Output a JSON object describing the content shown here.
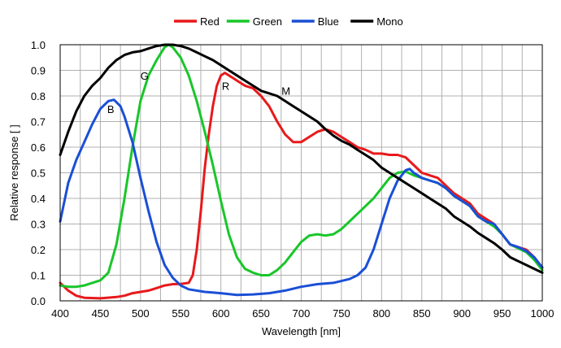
{
  "chart_data": {
    "type": "line",
    "title": "",
    "xlabel": "Wavelength [nm]",
    "ylabel": "Relative response [ ]",
    "xlim": [
      400,
      1000
    ],
    "ylim": [
      0.0,
      1.0
    ],
    "x_ticks": [
      "400",
      "450",
      "500",
      "550",
      "600",
      "650",
      "700",
      "750",
      "800",
      "850",
      "900",
      "950",
      "1000"
    ],
    "y_ticks": [
      "0.0",
      "0.1",
      "0.2",
      "0.3",
      "0.4",
      "0.5",
      "0.6",
      "0.7",
      "0.8",
      "0.9",
      "1.0"
    ],
    "grid": true,
    "legend_position": "top-center",
    "annotations": [
      {
        "text": "B",
        "x": 463,
        "y": 0.75
      },
      {
        "text": "G",
        "x": 505,
        "y": 0.88
      },
      {
        "text": "R",
        "x": 606,
        "y": 0.84
      },
      {
        "text": "M",
        "x": 681,
        "y": 0.82
      }
    ],
    "series": [
      {
        "name": "Red",
        "color": "#e8191b",
        "points": [
          [
            400,
            0.07
          ],
          [
            410,
            0.04
          ],
          [
            420,
            0.02
          ],
          [
            430,
            0.012
          ],
          [
            450,
            0.01
          ],
          [
            470,
            0.015
          ],
          [
            480,
            0.02
          ],
          [
            490,
            0.03
          ],
          [
            500,
            0.035
          ],
          [
            510,
            0.04
          ],
          [
            520,
            0.05
          ],
          [
            530,
            0.06
          ],
          [
            540,
            0.065
          ],
          [
            550,
            0.066
          ],
          [
            560,
            0.07
          ],
          [
            565,
            0.1
          ],
          [
            570,
            0.2
          ],
          [
            575,
            0.35
          ],
          [
            580,
            0.52
          ],
          [
            585,
            0.65
          ],
          [
            590,
            0.76
          ],
          [
            595,
            0.84
          ],
          [
            600,
            0.88
          ],
          [
            605,
            0.89
          ],
          [
            610,
            0.88
          ],
          [
            615,
            0.87
          ],
          [
            620,
            0.86
          ],
          [
            630,
            0.84
          ],
          [
            640,
            0.83
          ],
          [
            650,
            0.8
          ],
          [
            660,
            0.76
          ],
          [
            670,
            0.7
          ],
          [
            680,
            0.65
          ],
          [
            690,
            0.62
          ],
          [
            700,
            0.62
          ],
          [
            710,
            0.64
          ],
          [
            720,
            0.66
          ],
          [
            730,
            0.67
          ],
          [
            740,
            0.66
          ],
          [
            750,
            0.64
          ],
          [
            760,
            0.62
          ],
          [
            770,
            0.6
          ],
          [
            780,
            0.59
          ],
          [
            790,
            0.575
          ],
          [
            800,
            0.575
          ],
          [
            810,
            0.57
          ],
          [
            820,
            0.57
          ],
          [
            830,
            0.56
          ],
          [
            840,
            0.53
          ],
          [
            850,
            0.5
          ],
          [
            860,
            0.49
          ],
          [
            870,
            0.48
          ],
          [
            880,
            0.45
          ],
          [
            890,
            0.42
          ],
          [
            900,
            0.4
          ],
          [
            910,
            0.38
          ],
          [
            920,
            0.34
          ],
          [
            930,
            0.32
          ],
          [
            940,
            0.3
          ],
          [
            950,
            0.26
          ],
          [
            960,
            0.22
          ],
          [
            970,
            0.21
          ],
          [
            980,
            0.2
          ],
          [
            990,
            0.17
          ],
          [
            1000,
            0.13
          ]
        ]
      },
      {
        "name": "Green",
        "color": "#19c62a",
        "points": [
          [
            400,
            0.06
          ],
          [
            410,
            0.055
          ],
          [
            420,
            0.055
          ],
          [
            430,
            0.06
          ],
          [
            440,
            0.07
          ],
          [
            450,
            0.08
          ],
          [
            460,
            0.11
          ],
          [
            470,
            0.22
          ],
          [
            480,
            0.4
          ],
          [
            490,
            0.6
          ],
          [
            500,
            0.78
          ],
          [
            510,
            0.88
          ],
          [
            520,
            0.94
          ],
          [
            530,
            0.99
          ],
          [
            535,
            1.0
          ],
          [
            540,
            0.99
          ],
          [
            550,
            0.95
          ],
          [
            560,
            0.88
          ],
          [
            570,
            0.78
          ],
          [
            580,
            0.66
          ],
          [
            590,
            0.53
          ],
          [
            600,
            0.39
          ],
          [
            610,
            0.26
          ],
          [
            620,
            0.17
          ],
          [
            630,
            0.125
          ],
          [
            640,
            0.11
          ],
          [
            650,
            0.1
          ],
          [
            660,
            0.1
          ],
          [
            670,
            0.12
          ],
          [
            680,
            0.15
          ],
          [
            690,
            0.19
          ],
          [
            700,
            0.23
          ],
          [
            710,
            0.255
          ],
          [
            720,
            0.26
          ],
          [
            730,
            0.255
          ],
          [
            740,
            0.26
          ],
          [
            750,
            0.28
          ],
          [
            760,
            0.31
          ],
          [
            770,
            0.34
          ],
          [
            780,
            0.37
          ],
          [
            790,
            0.4
          ],
          [
            800,
            0.44
          ],
          [
            810,
            0.48
          ],
          [
            820,
            0.5
          ],
          [
            830,
            0.505
          ],
          [
            840,
            0.49
          ],
          [
            850,
            0.48
          ],
          [
            860,
            0.47
          ],
          [
            870,
            0.46
          ],
          [
            880,
            0.44
          ],
          [
            890,
            0.41
          ],
          [
            900,
            0.39
          ],
          [
            910,
            0.37
          ],
          [
            920,
            0.33
          ],
          [
            930,
            0.31
          ],
          [
            940,
            0.29
          ],
          [
            950,
            0.26
          ],
          [
            960,
            0.22
          ],
          [
            970,
            0.205
          ],
          [
            980,
            0.19
          ],
          [
            990,
            0.16
          ],
          [
            1000,
            0.12
          ]
        ]
      },
      {
        "name": "Blue",
        "color": "#1a4fd6",
        "points": [
          [
            400,
            0.31
          ],
          [
            410,
            0.46
          ],
          [
            420,
            0.55
          ],
          [
            430,
            0.62
          ],
          [
            440,
            0.69
          ],
          [
            450,
            0.75
          ],
          [
            460,
            0.78
          ],
          [
            467,
            0.785
          ],
          [
            475,
            0.76
          ],
          [
            480,
            0.72
          ],
          [
            490,
            0.62
          ],
          [
            500,
            0.48
          ],
          [
            510,
            0.35
          ],
          [
            520,
            0.23
          ],
          [
            530,
            0.14
          ],
          [
            540,
            0.09
          ],
          [
            550,
            0.06
          ],
          [
            560,
            0.045
          ],
          [
            580,
            0.035
          ],
          [
            600,
            0.03
          ],
          [
            620,
            0.023
          ],
          [
            640,
            0.025
          ],
          [
            660,
            0.03
          ],
          [
            680,
            0.04
          ],
          [
            700,
            0.055
          ],
          [
            720,
            0.065
          ],
          [
            740,
            0.07
          ],
          [
            760,
            0.085
          ],
          [
            770,
            0.1
          ],
          [
            780,
            0.13
          ],
          [
            790,
            0.2
          ],
          [
            800,
            0.3
          ],
          [
            810,
            0.4
          ],
          [
            820,
            0.47
          ],
          [
            830,
            0.51
          ],
          [
            835,
            0.515
          ],
          [
            840,
            0.5
          ],
          [
            850,
            0.48
          ],
          [
            860,
            0.47
          ],
          [
            870,
            0.46
          ],
          [
            880,
            0.44
          ],
          [
            890,
            0.41
          ],
          [
            900,
            0.39
          ],
          [
            910,
            0.37
          ],
          [
            920,
            0.33
          ],
          [
            930,
            0.31
          ],
          [
            940,
            0.3
          ],
          [
            950,
            0.26
          ],
          [
            960,
            0.22
          ],
          [
            970,
            0.21
          ],
          [
            980,
            0.195
          ],
          [
            990,
            0.17
          ],
          [
            1000,
            0.13
          ]
        ]
      },
      {
        "name": "Mono",
        "color": "#000000",
        "points": [
          [
            400,
            0.57
          ],
          [
            410,
            0.66
          ],
          [
            420,
            0.74
          ],
          [
            430,
            0.8
          ],
          [
            440,
            0.84
          ],
          [
            450,
            0.87
          ],
          [
            460,
            0.91
          ],
          [
            470,
            0.94
          ],
          [
            480,
            0.96
          ],
          [
            490,
            0.97
          ],
          [
            500,
            0.975
          ],
          [
            510,
            0.985
          ],
          [
            520,
            0.995
          ],
          [
            530,
            1.0
          ],
          [
            540,
            1.0
          ],
          [
            550,
            0.995
          ],
          [
            560,
            0.985
          ],
          [
            570,
            0.97
          ],
          [
            580,
            0.955
          ],
          [
            590,
            0.94
          ],
          [
            600,
            0.92
          ],
          [
            610,
            0.9
          ],
          [
            620,
            0.88
          ],
          [
            630,
            0.86
          ],
          [
            640,
            0.84
          ],
          [
            650,
            0.82
          ],
          [
            660,
            0.81
          ],
          [
            670,
            0.8
          ],
          [
            680,
            0.78
          ],
          [
            690,
            0.76
          ],
          [
            700,
            0.74
          ],
          [
            710,
            0.72
          ],
          [
            720,
            0.7
          ],
          [
            730,
            0.67
          ],
          [
            740,
            0.645
          ],
          [
            750,
            0.625
          ],
          [
            760,
            0.61
          ],
          [
            770,
            0.59
          ],
          [
            780,
            0.57
          ],
          [
            790,
            0.55
          ],
          [
            800,
            0.52
          ],
          [
            810,
            0.5
          ],
          [
            820,
            0.48
          ],
          [
            830,
            0.46
          ],
          [
            840,
            0.44
          ],
          [
            850,
            0.42
          ],
          [
            860,
            0.4
          ],
          [
            870,
            0.38
          ],
          [
            880,
            0.36
          ],
          [
            890,
            0.33
          ],
          [
            900,
            0.31
          ],
          [
            910,
            0.29
          ],
          [
            920,
            0.265
          ],
          [
            930,
            0.245
          ],
          [
            940,
            0.225
          ],
          [
            950,
            0.2
          ],
          [
            960,
            0.17
          ],
          [
            970,
            0.155
          ],
          [
            980,
            0.14
          ],
          [
            990,
            0.125
          ],
          [
            1000,
            0.11
          ]
        ]
      }
    ]
  }
}
